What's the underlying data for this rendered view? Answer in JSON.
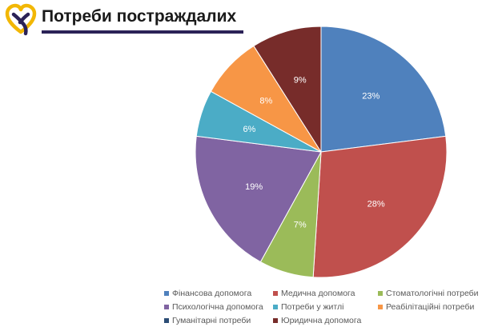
{
  "header": {
    "title": "Потреби постраждалих",
    "logo_icon": "heart-outline-logo-icon",
    "logo_colors": {
      "yellow": "#f2b705",
      "purple": "#2b2257"
    },
    "rule_color": "#2b2257"
  },
  "chart_data": {
    "type": "pie",
    "title": "",
    "start": "12 o'clock, clockwise",
    "legend_position": "bottom",
    "slices": [
      {
        "label": "Фінансова допомога",
        "value": 23,
        "value_label": "23%",
        "color": "#4f81bd"
      },
      {
        "label": "Медична допомога",
        "value": 28,
        "value_label": "28%",
        "color": "#c0504d"
      },
      {
        "label": "Стоматологічні потреби",
        "value": 7,
        "value_label": "7%",
        "color": "#9bbb59"
      },
      {
        "label": "Психологічна допомога",
        "value": 19,
        "value_label": "19%",
        "color": "#8064a2"
      },
      {
        "label": "Потреби у житлі",
        "value": 6,
        "value_label": "6%",
        "color": "#4bacc6"
      },
      {
        "label": "Реабілітаційні потреби",
        "value": 8,
        "value_label": "8%",
        "color": "#f79646"
      },
      {
        "label": "Гуманітарні потреби",
        "value": 0,
        "value_label": "",
        "color": "#2c4d75"
      },
      {
        "label": "Юридична допомога",
        "value": 9,
        "value_label": "9%",
        "color": "#772c2a"
      }
    ]
  }
}
